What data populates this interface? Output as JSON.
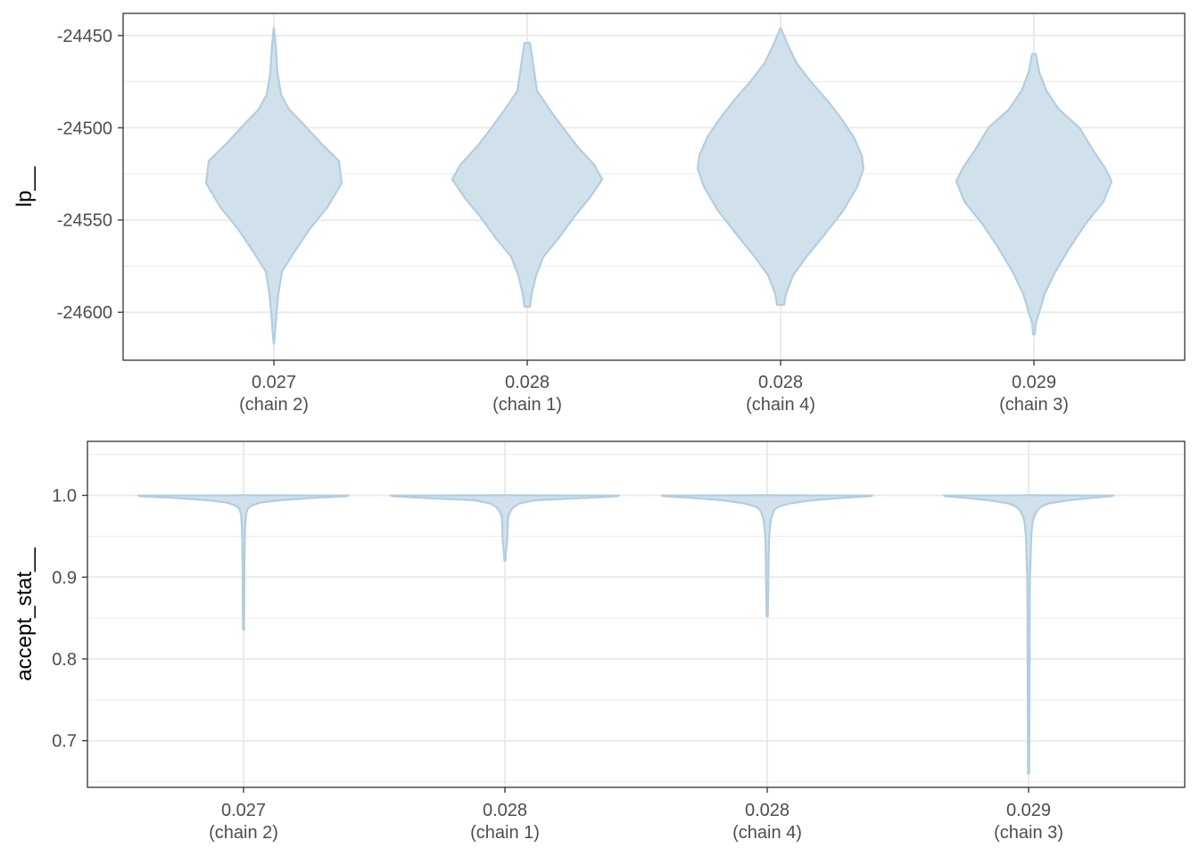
{
  "chart_data": [
    {
      "type": "violin",
      "ylabel": "lp__",
      "ylim": [
        -24626,
        -24438
      ],
      "yticks": [
        -24450,
        -24500,
        -24550,
        -24600
      ],
      "ytick_labels": [
        "-24450",
        "-24500",
        "-24550",
        "-24600"
      ],
      "categories": [
        {
          "value": "0.027",
          "chain": "(chain 2)"
        },
        {
          "value": "0.028",
          "chain": "(chain 1)"
        },
        {
          "value": "0.028",
          "chain": "(chain 4)"
        },
        {
          "value": "0.029",
          "chain": "(chain 3)"
        }
      ],
      "violins": [
        {
          "profile": [
            [
              -24446,
              0.2
            ],
            [
              -24455,
              2
            ],
            [
              -24470,
              4
            ],
            [
              -24482,
              8
            ],
            [
              -24490,
              17
            ],
            [
              -24498,
              33
            ],
            [
              -24508,
              52
            ],
            [
              -24518,
              73
            ],
            [
              -24530,
              76
            ],
            [
              -24543,
              60
            ],
            [
              -24555,
              40
            ],
            [
              -24568,
              22
            ],
            [
              -24578,
              9
            ],
            [
              -24590,
              5
            ],
            [
              -24600,
              3
            ],
            [
              -24610,
              1.5
            ],
            [
              -24617,
              0.2
            ]
          ]
        },
        {
          "profile": [
            [
              -24454,
              3
            ],
            [
              -24460,
              5
            ],
            [
              -24470,
              8
            ],
            [
              -24480,
              11
            ],
            [
              -24490,
              25
            ],
            [
              -24500,
              40
            ],
            [
              -24510,
              56
            ],
            [
              -24520,
              75
            ],
            [
              -24528,
              84
            ],
            [
              -24538,
              70
            ],
            [
              -24548,
              53
            ],
            [
              -24560,
              35
            ],
            [
              -24570,
              18
            ],
            [
              -24580,
              10
            ],
            [
              -24590,
              5
            ],
            [
              -24597,
              3
            ]
          ]
        },
        {
          "profile": [
            [
              -24446,
              0.2
            ],
            [
              -24455,
              8
            ],
            [
              -24465,
              18
            ],
            [
              -24475,
              34
            ],
            [
              -24485,
              52
            ],
            [
              -24495,
              68
            ],
            [
              -24505,
              82
            ],
            [
              -24515,
              91
            ],
            [
              -24522,
              93
            ],
            [
              -24532,
              86
            ],
            [
              -24545,
              70
            ],
            [
              -24558,
              49
            ],
            [
              -24570,
              29
            ],
            [
              -24580,
              14
            ],
            [
              -24590,
              6
            ],
            [
              -24596,
              4
            ]
          ]
        },
        {
          "profile": [
            [
              -24460,
              2
            ],
            [
              -24470,
              6
            ],
            [
              -24480,
              14
            ],
            [
              -24490,
              28
            ],
            [
              -24500,
              51
            ],
            [
              -24512,
              66
            ],
            [
              -24522,
              80
            ],
            [
              -24529,
              87
            ],
            [
              -24540,
              78
            ],
            [
              -24552,
              58
            ],
            [
              -24565,
              40
            ],
            [
              -24578,
              24
            ],
            [
              -24590,
              12
            ],
            [
              -24600,
              6
            ],
            [
              -24606,
              2
            ],
            [
              -24612,
              1
            ]
          ]
        }
      ]
    },
    {
      "type": "violin",
      "ylabel": "accept_stat__",
      "ylim": [
        0.643,
        1.066
      ],
      "yticks": [
        1.0,
        0.9,
        0.8,
        0.7
      ],
      "ytick_labels": [
        "1.0",
        "0.9",
        "0.8",
        "0.7"
      ],
      "categories": [
        {
          "value": "0.027",
          "chain": "(chain 2)"
        },
        {
          "value": "0.028",
          "chain": "(chain 1)"
        },
        {
          "value": "0.028",
          "chain": "(chain 4)"
        },
        {
          "value": "0.029",
          "chain": "(chain 3)"
        }
      ],
      "violins": [
        {
          "profile": [
            [
              1.0002,
              0.2
            ],
            [
              0.9998,
              118
            ],
            [
              0.999,
              116
            ],
            [
              0.997,
              80
            ],
            [
              0.994,
              40
            ],
            [
              0.991,
              18
            ],
            [
              0.987,
              8
            ],
            [
              0.984,
              5
            ],
            [
              0.981,
              4
            ],
            [
              0.978,
              3
            ],
            [
              0.973,
              2.5
            ],
            [
              0.965,
              2
            ],
            [
              0.95,
              1.5
            ],
            [
              0.92,
              1.1
            ],
            [
              0.88,
              0.9
            ],
            [
              0.836,
              0.6
            ]
          ]
        },
        {
          "profile": [
            [
              1.0002,
              0.2
            ],
            [
              0.9998,
              128
            ],
            [
              0.999,
              126
            ],
            [
              0.997,
              94
            ],
            [
              0.994,
              34
            ],
            [
              0.99,
              16
            ],
            [
              0.986,
              10
            ],
            [
              0.982,
              7
            ],
            [
              0.978,
              5
            ],
            [
              0.973,
              3.5
            ],
            [
              0.96,
              3
            ],
            [
              0.945,
              2.5
            ],
            [
              0.93,
              1.2
            ],
            [
              0.92,
              0.6
            ]
          ]
        },
        {
          "profile": [
            [
              1.0002,
              0.2
            ],
            [
              0.9998,
              118
            ],
            [
              0.999,
              116
            ],
            [
              0.997,
              86
            ],
            [
              0.994,
              50
            ],
            [
              0.99,
              25
            ],
            [
              0.986,
              12
            ],
            [
              0.982,
              8
            ],
            [
              0.977,
              6
            ],
            [
              0.97,
              4
            ],
            [
              0.96,
              3
            ],
            [
              0.945,
              2
            ],
            [
              0.92,
              1.5
            ],
            [
              0.885,
              1.2
            ],
            [
              0.852,
              0.6
            ]
          ]
        },
        {
          "profile": [
            [
              1.0002,
              0.2
            ],
            [
              0.9998,
              95
            ],
            [
              0.999,
              93
            ],
            [
              0.997,
              72
            ],
            [
              0.994,
              45
            ],
            [
              0.99,
              22
            ],
            [
              0.986,
              14
            ],
            [
              0.982,
              10
            ],
            [
              0.976,
              7
            ],
            [
              0.97,
              5
            ],
            [
              0.962,
              4
            ],
            [
              0.95,
              3
            ],
            [
              0.935,
              2.5
            ],
            [
              0.915,
              2
            ],
            [
              0.9,
              1.5
            ],
            [
              0.85,
              1.2
            ],
            [
              0.75,
              1
            ],
            [
              0.66,
              0.6
            ]
          ]
        }
      ]
    }
  ]
}
